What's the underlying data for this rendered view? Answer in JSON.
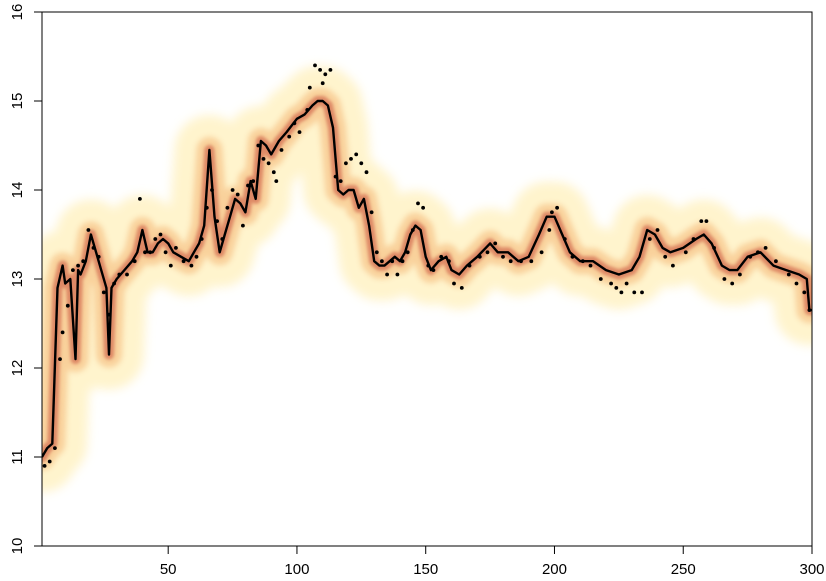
{
  "chart_data": {
    "type": "line",
    "title": "",
    "xlabel": "",
    "ylabel": "",
    "xlim": [
      1,
      300
    ],
    "ylim": [
      10,
      16
    ],
    "x_ticks": [
      50,
      100,
      150,
      200,
      250,
      300
    ],
    "y_ticks": [
      10,
      11,
      12,
      13,
      14,
      15,
      16
    ],
    "x_tick_labels": [
      "50",
      "100",
      "150",
      "200",
      "250",
      "300"
    ],
    "y_tick_labels": [
      "10",
      "11",
      "12",
      "13",
      "14",
      "15",
      "16"
    ],
    "grid": false,
    "legend": "none",
    "colors": {
      "line": "#000000",
      "points": "#000000",
      "band_inner": "#c8503a",
      "band_mid": "#f2a860",
      "band_outer": "#fff3c8"
    },
    "series": [
      {
        "type": "line",
        "x": [
          1,
          3,
          5,
          7,
          9,
          10,
          12,
          14,
          15,
          16,
          18,
          20,
          22,
          24,
          26,
          27,
          28,
          30,
          33,
          36,
          38,
          40,
          42,
          44,
          46,
          48,
          50,
          52,
          55,
          58,
          60,
          62,
          64,
          66,
          68,
          70,
          72,
          74,
          76,
          78,
          80,
          82,
          84,
          86,
          88,
          90,
          93,
          96,
          100,
          103,
          106,
          108,
          110,
          112,
          114,
          116,
          118,
          120,
          122,
          124,
          126,
          128,
          130,
          132,
          134,
          136,
          138,
          140,
          142,
          144,
          146,
          148,
          150,
          152,
          155,
          158,
          160,
          163,
          166,
          170,
          175,
          178,
          182,
          186,
          190,
          194,
          197,
          200,
          203,
          206,
          210,
          215,
          220,
          225,
          230,
          233,
          236,
          239,
          242,
          245,
          250,
          255,
          258,
          261,
          265,
          268,
          271,
          275,
          280,
          285,
          290,
          295,
          298,
          299,
          300
        ],
        "y": [
          11.0,
          11.1,
          11.15,
          12.9,
          13.15,
          12.95,
          13.0,
          12.1,
          13.1,
          13.05,
          13.2,
          13.5,
          13.3,
          13.1,
          12.9,
          12.15,
          12.9,
          13.0,
          13.1,
          13.2,
          13.3,
          13.55,
          13.3,
          13.3,
          13.4,
          13.45,
          13.4,
          13.3,
          13.25,
          13.2,
          13.3,
          13.4,
          13.6,
          14.45,
          13.7,
          13.3,
          13.5,
          13.7,
          13.9,
          13.85,
          13.75,
          14.1,
          13.9,
          14.55,
          14.5,
          14.4,
          14.55,
          14.65,
          14.8,
          14.85,
          14.95,
          15.0,
          15.0,
          14.95,
          14.7,
          14.0,
          13.95,
          14.0,
          14.0,
          13.8,
          13.9,
          13.6,
          13.2,
          13.15,
          13.15,
          13.2,
          13.25,
          13.2,
          13.3,
          13.5,
          13.6,
          13.55,
          13.25,
          13.1,
          13.2,
          13.25,
          13.1,
          13.05,
          13.15,
          13.25,
          13.4,
          13.3,
          13.3,
          13.2,
          13.25,
          13.5,
          13.7,
          13.7,
          13.5,
          13.3,
          13.2,
          13.2,
          13.1,
          13.05,
          13.1,
          13.25,
          13.55,
          13.5,
          13.35,
          13.3,
          13.35,
          13.45,
          13.5,
          13.4,
          13.15,
          13.1,
          13.1,
          13.25,
          13.3,
          13.15,
          13.1,
          13.05,
          13.0,
          12.65,
          12.65
        ]
      },
      {
        "type": "scatter",
        "x": [
          2,
          4,
          6,
          8,
          9,
          11,
          13,
          15,
          17,
          19,
          21,
          23,
          25,
          27,
          29,
          31,
          34,
          37,
          39,
          41,
          43,
          45,
          47,
          49,
          51,
          53,
          56,
          59,
          61,
          63,
          65,
          67,
          69,
          71,
          73,
          75,
          77,
          79,
          81,
          83,
          85,
          87,
          89,
          91,
          92,
          94,
          97,
          99,
          101,
          104,
          105,
          107,
          109,
          110,
          111,
          113,
          115,
          117,
          119,
          121,
          123,
          125,
          127,
          129,
          131,
          133,
          135,
          137,
          139,
          141,
          143,
          145,
          147,
          149,
          151,
          153,
          156,
          159,
          161,
          164,
          167,
          171,
          174,
          177,
          180,
          183,
          187,
          191,
          195,
          198,
          199,
          201,
          204,
          207,
          211,
          214,
          218,
          222,
          224,
          226,
          228,
          231,
          234,
          237,
          240,
          243,
          246,
          251,
          254,
          257,
          259,
          262,
          266,
          269,
          272,
          276,
          279,
          282,
          286,
          291,
          294,
          297,
          299
        ],
        "y": [
          10.9,
          10.95,
          11.1,
          12.1,
          12.4,
          12.7,
          13.1,
          13.15,
          13.2,
          13.55,
          13.35,
          13.25,
          12.85,
          12.6,
          12.95,
          13.05,
          13.05,
          13.2,
          13.9,
          13.3,
          13.3,
          13.45,
          13.5,
          13.3,
          13.15,
          13.35,
          13.2,
          13.15,
          13.25,
          13.45,
          13.8,
          14.0,
          13.65,
          13.45,
          13.8,
          14.0,
          13.95,
          13.6,
          14.05,
          14.1,
          14.5,
          14.35,
          14.3,
          14.2,
          14.1,
          14.45,
          14.6,
          14.75,
          14.65,
          14.9,
          15.15,
          15.4,
          15.35,
          15.2,
          15.3,
          15.35,
          14.15,
          14.1,
          14.3,
          14.35,
          14.4,
          14.3,
          14.2,
          13.75,
          13.3,
          13.2,
          13.05,
          13.2,
          13.05,
          13.2,
          13.3,
          13.55,
          13.85,
          13.8,
          13.15,
          13.1,
          13.25,
          13.2,
          12.95,
          12.9,
          13.15,
          13.25,
          13.3,
          13.4,
          13.25,
          13.2,
          13.2,
          13.2,
          13.3,
          13.55,
          13.75,
          13.8,
          13.45,
          13.25,
          13.2,
          13.15,
          13.0,
          12.95,
          12.9,
          12.85,
          12.95,
          12.85,
          12.85,
          13.45,
          13.55,
          13.25,
          13.15,
          13.3,
          13.45,
          13.65,
          13.65,
          13.35,
          13.0,
          12.95,
          13.05,
          13.25,
          13.3,
          13.35,
          13.2,
          13.05,
          12.95,
          12.85,
          12.65
        ]
      }
    ]
  }
}
